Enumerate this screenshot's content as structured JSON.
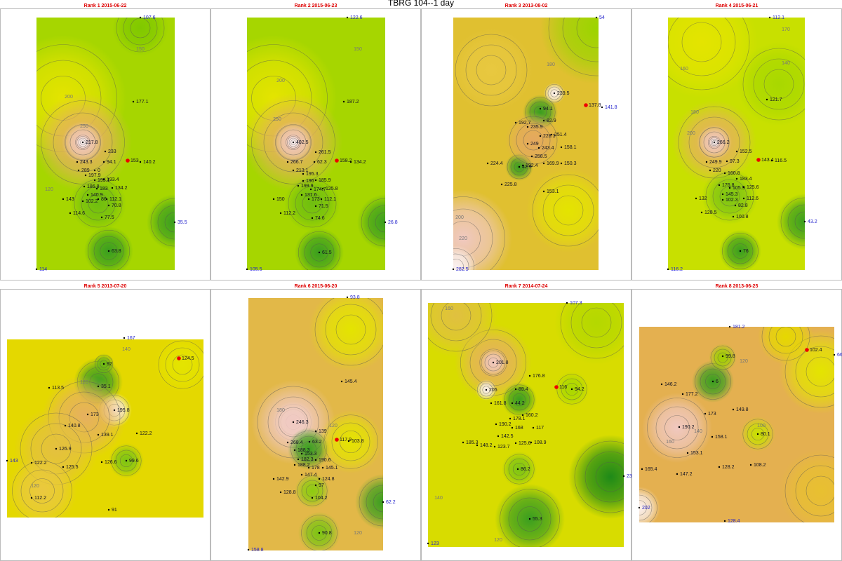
{
  "title": "TBRG 104--1 day",
  "panels": [
    {
      "title": "Rank 1 2015-06-22",
      "stations": [
        107.6,
        177.1,
        217.8,
        233,
        153,
        140.2,
        243.3,
        94.1,
        289,
        0,
        197.9,
        195.1,
        193.4,
        186.8,
        183,
        134.2,
        140.9,
        143,
        102.2,
        86,
        112.1,
        70.8,
        114.6,
        77.5,
        35.5,
        63.8,
        114
      ],
      "contours": [
        150,
        200,
        250,
        120
      ]
    },
    {
      "title": "Rank 2 2015-06-23",
      "stations": [
        122.6,
        187.2,
        402.5,
        261.5,
        158.2,
        134.2,
        266.7,
        62.3,
        213.1,
        195.3,
        196,
        185.9,
        199.9,
        174.7,
        125.8,
        131.6,
        150,
        173,
        112.1,
        71.5,
        112.2,
        74.6,
        26.8,
        61.5,
        105.5
      ],
      "contours": [
        200,
        250,
        150
      ]
    },
    {
      "title": "Rank 3 2013-08-02",
      "stations": [
        54,
        137.8,
        141.8,
        239.5,
        94.1,
        192.7,
        82.9,
        235.9,
        228.3,
        251.4,
        249,
        243.4,
        158.1,
        258.5,
        224.4,
        192.4,
        42.9,
        169.9,
        150.3,
        225.8,
        153.1,
        282.5
      ],
      "contours": [
        180,
        200,
        220
      ]
    },
    {
      "title": "Rank 4 2015-06-21",
      "stations": [
        112.1,
        121.7,
        266.2,
        152.5,
        143.4,
        116.5,
        249.9,
        97.3,
        220,
        160.8,
        183.4,
        176.8,
        105.9,
        125.6,
        145.3,
        132,
        102.3,
        112.6,
        82.8,
        128.5,
        100.8,
        43.2,
        76,
        116.2
      ],
      "contours": [
        170,
        160,
        140,
        180,
        200
      ]
    },
    {
      "title": "Rank 5 2013-07-20",
      "stations": [
        167,
        124.5,
        92,
        35.1,
        113.5,
        195.8,
        173,
        140.8,
        139.1,
        122.2,
        126.9,
        143,
        122.2,
        125.5,
        126.6,
        99.6,
        112.2,
        91
      ],
      "contours": [
        140,
        120,
        120
      ]
    },
    {
      "title": "Rank 6 2015-06-20",
      "stations": [
        93.8,
        145.4,
        246.3,
        139,
        117.9,
        103.8,
        268.4,
        63.2,
        188.3,
        153.3,
        182.3,
        190.6,
        188.2,
        178,
        145.1,
        147.4,
        142.9,
        124.8,
        97,
        128.8,
        104.2,
        62.2,
        90.8,
        158.8
      ],
      "contours": [
        180,
        120,
        120
      ]
    },
    {
      "title": "Rank 7 2014-07-24",
      "stations": [
        107.3,
        176.8,
        201.8,
        205,
        116,
        94.2,
        89.4,
        161.8,
        44.2,
        160.2,
        178.1,
        190.2,
        168,
        117,
        142.5,
        185.3,
        148.2,
        123.7,
        125.6,
        108.9,
        86.2,
        23,
        55.3,
        123
      ],
      "contours": [
        160,
        140,
        120
      ]
    },
    {
      "title": "Rank 8 2013-06-25",
      "stations": [
        181.2,
        102.4,
        66,
        99.8,
        6,
        146.2,
        177.2,
        173,
        149.8,
        190.2,
        158.1,
        80.1,
        153.1,
        128.2,
        108.2,
        165.4,
        147.2,
        202,
        128.4
      ],
      "contours": [
        120,
        100,
        160,
        140
      ]
    }
  ]
}
